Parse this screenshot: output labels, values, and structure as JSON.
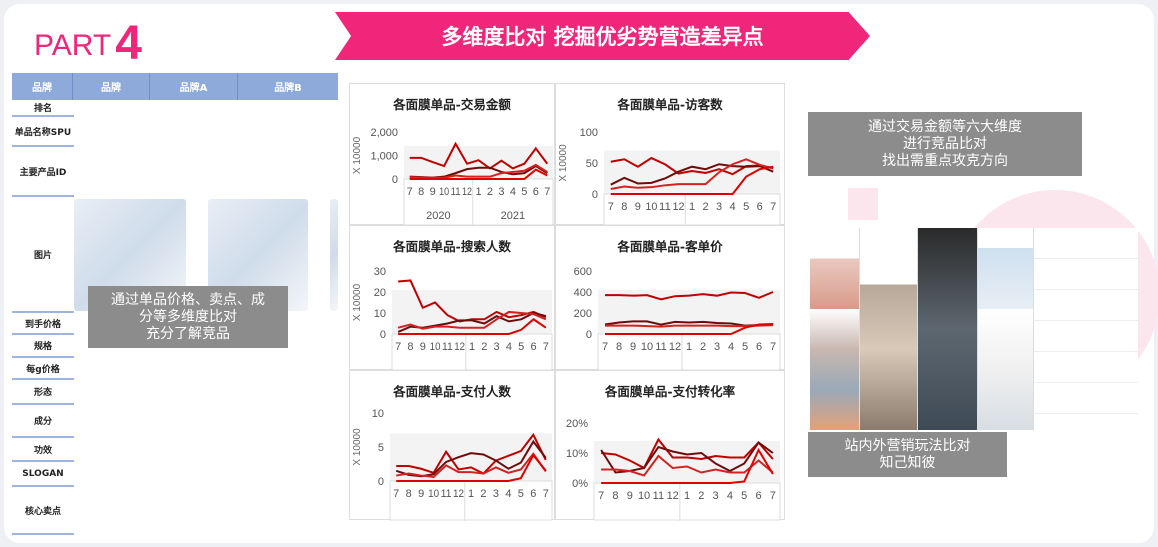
{
  "header": {
    "part_label": "PART",
    "part_number": "4",
    "banner_title": "多维度比对 挖掘优劣势营造差异点"
  },
  "colors": {
    "accent": "#f0267a",
    "table_header": "#8eaadb",
    "overlay": "#8c8c8c",
    "series": [
      "#c00000",
      "#6e0c0c",
      "#d42222",
      "#e00000"
    ]
  },
  "table": {
    "headers": [
      "品牌",
      "品牌",
      "品牌A",
      "品牌B"
    ],
    "rows": [
      "排名",
      "单品名称SPU",
      "主要产品ID",
      "图片",
      "到手价格",
      "规格",
      "每g价格",
      "形态",
      "成分",
      "功效",
      "SLOGAN",
      "核心卖点"
    ],
    "overlay_lines": [
      "通过单品价格、卖点、成",
      "分等多维度比对",
      "充分了解竞品"
    ]
  },
  "chart_data": [
    {
      "type": "line",
      "title": "各面膜单品-交易金额",
      "ylabel": "X 10000",
      "ylim": [
        0,
        2000
      ],
      "yticks": [
        "2,000",
        "1,000",
        "0"
      ],
      "categories": [
        "7",
        "8",
        "9",
        "10",
        "11",
        "12",
        "1",
        "2",
        "3",
        "4",
        "5",
        "6",
        "7"
      ],
      "groups": [
        "2020",
        "2021"
      ],
      "series": [
        {
          "values": [
            900,
            900,
            720,
            550,
            1500,
            650,
            800,
            450,
            780,
            450,
            650,
            1300,
            650
          ]
        },
        {
          "values": [
            100,
            80,
            60,
            100,
            250,
            420,
            480,
            480,
            300,
            200,
            250,
            550,
            250
          ]
        },
        {
          "values": [
            80,
            60,
            50,
            60,
            150,
            100,
            100,
            100,
            250,
            300,
            350,
            600,
            300
          ]
        },
        {
          "values": [
            0,
            0,
            0,
            0,
            0,
            0,
            0,
            0,
            0,
            0,
            0,
            400,
            150
          ]
        }
      ]
    },
    {
      "type": "line",
      "title": "各面膜单品-访客数",
      "ylabel": "X 10000",
      "ylim": [
        0,
        100
      ],
      "yticks": [
        "100",
        "50",
        "0"
      ],
      "categories": [
        "7",
        "8",
        "9",
        "10",
        "11",
        "12",
        "1",
        "2",
        "3",
        "4",
        "5",
        "6",
        "7"
      ],
      "series": [
        {
          "values": [
            52,
            56,
            44,
            58,
            48,
            33,
            37,
            34,
            40,
            32,
            45,
            46,
            42
          ]
        },
        {
          "values": [
            15,
            26,
            17,
            18,
            25,
            36,
            44,
            40,
            48,
            45,
            44,
            45,
            36
          ]
        },
        {
          "values": [
            8,
            12,
            10,
            11,
            14,
            16,
            16,
            16,
            35,
            48,
            56,
            47,
            41
          ]
        },
        {
          "values": [
            0,
            0,
            0,
            0,
            0,
            0,
            0,
            0,
            0,
            0,
            28,
            40,
            44
          ]
        }
      ]
    },
    {
      "type": "line",
      "title": "各面膜单品-搜索人数",
      "ylabel": "X 10000",
      "ylim": [
        0,
        30
      ],
      "yticks": [
        "30",
        "20",
        "10",
        "0"
      ],
      "categories": [
        "7",
        "8",
        "9",
        "10",
        "11",
        "12",
        "1",
        "2",
        "3",
        "4",
        "5",
        "6",
        "7"
      ],
      "series": [
        {
          "values": [
            25,
            25.5,
            12.5,
            15,
            9,
            6,
            7,
            7,
            10.5,
            8,
            9,
            10.5,
            8
          ]
        },
        {
          "values": [
            1,
            3.5,
            3,
            4,
            5,
            6.5,
            6.5,
            5,
            8.5,
            6,
            7,
            10,
            8.5
          ]
        },
        {
          "values": [
            3,
            4.5,
            2.5,
            3.5,
            3.5,
            3,
            3,
            3,
            7,
            10.5,
            10,
            9.5,
            7
          ]
        },
        {
          "values": [
            0,
            0,
            0,
            0,
            0,
            0,
            0,
            0,
            0,
            0,
            2,
            7,
            3
          ]
        }
      ]
    },
    {
      "type": "line",
      "title": "各面膜单品-客单价",
      "ylabel": "",
      "ylim": [
        0,
        600
      ],
      "yticks": [
        "600",
        "400",
        "200",
        "0"
      ],
      "categories": [
        "7",
        "8",
        "9",
        "10",
        "11",
        "12",
        "1",
        "2",
        "3",
        "4",
        "5",
        "6",
        "7"
      ],
      "series": [
        {
          "values": [
            370,
            370,
            365,
            370,
            330,
            360,
            365,
            380,
            365,
            395,
            390,
            345,
            400
          ]
        },
        {
          "values": [
            90,
            110,
            120,
            120,
            90,
            115,
            110,
            115,
            105,
            100,
            80,
            85,
            90
          ]
        },
        {
          "values": [
            80,
            80,
            80,
            75,
            70,
            80,
            80,
            80,
            80,
            75,
            75,
            80,
            85
          ]
        },
        {
          "values": [
            0,
            0,
            0,
            0,
            0,
            0,
            0,
            0,
            0,
            0,
            60,
            90,
            95
          ]
        }
      ]
    },
    {
      "type": "line",
      "title": "各面膜单品-支付人数",
      "ylabel": "X 10000",
      "ylim": [
        0,
        10
      ],
      "yticks": [
        "10",
        "5",
        "0"
      ],
      "categories": [
        "7",
        "8",
        "9",
        "10",
        "11",
        "12",
        "1",
        "2",
        "3",
        "4",
        "5",
        "6",
        "7"
      ],
      "series": [
        {
          "values": [
            2.2,
            2.2,
            1.8,
            1.2,
            4.3,
            1.7,
            2,
            1.1,
            3,
            3.7,
            4.4,
            6.8,
            3.1
          ]
        },
        {
          "values": [
            1.5,
            0.9,
            0.7,
            1,
            2.8,
            3.5,
            4.1,
            3.9,
            3,
            1.8,
            2.7,
            5.8,
            3.4
          ]
        },
        {
          "values": [
            0.8,
            1.1,
            0.8,
            0.6,
            2.3,
            1.3,
            1.3,
            1.1,
            2,
            1.2,
            1.7,
            4,
            1.4
          ]
        },
        {
          "values": [
            0,
            0,
            0,
            0,
            0,
            0,
            0,
            0,
            0,
            0,
            0.4,
            3.8,
            1.5
          ]
        }
      ]
    },
    {
      "type": "line",
      "title": "各面膜单品-支付转化率",
      "ylabel": "",
      "ylim": [
        0,
        20
      ],
      "yticks": [
        "20%",
        "10%",
        "0%"
      ],
      "categories": [
        "7",
        "8",
        "9",
        "10",
        "11",
        "12",
        "1",
        "2",
        "3",
        "4",
        "5",
        "6",
        "7"
      ],
      "series": [
        {
          "values": [
            10,
            9.5,
            7.5,
            5,
            14.5,
            8.5,
            8.5,
            8,
            9,
            8.5,
            8.5,
            13.5,
            8
          ]
        },
        {
          "values": [
            11,
            3.5,
            4,
            5,
            12,
            10.5,
            9.5,
            10,
            6.5,
            4,
            6.5,
            13.5,
            10
          ]
        },
        {
          "values": [
            4.5,
            4.5,
            4,
            2.5,
            9,
            5,
            5.5,
            3.5,
            4.5,
            3.5,
            3.5,
            7.5,
            3.5
          ]
        },
        {
          "values": [
            0,
            0,
            0,
            0,
            0,
            0,
            0,
            0,
            0,
            0,
            0.5,
            11,
            3
          ]
        }
      ]
    }
  ],
  "right": {
    "top_lines": [
      "通过交易金额等六大维度",
      "进行竞品比对",
      "找出需重点攻克方向"
    ],
    "bottom_lines": [
      "站内外营销玩法比对",
      "知己知彼"
    ]
  }
}
